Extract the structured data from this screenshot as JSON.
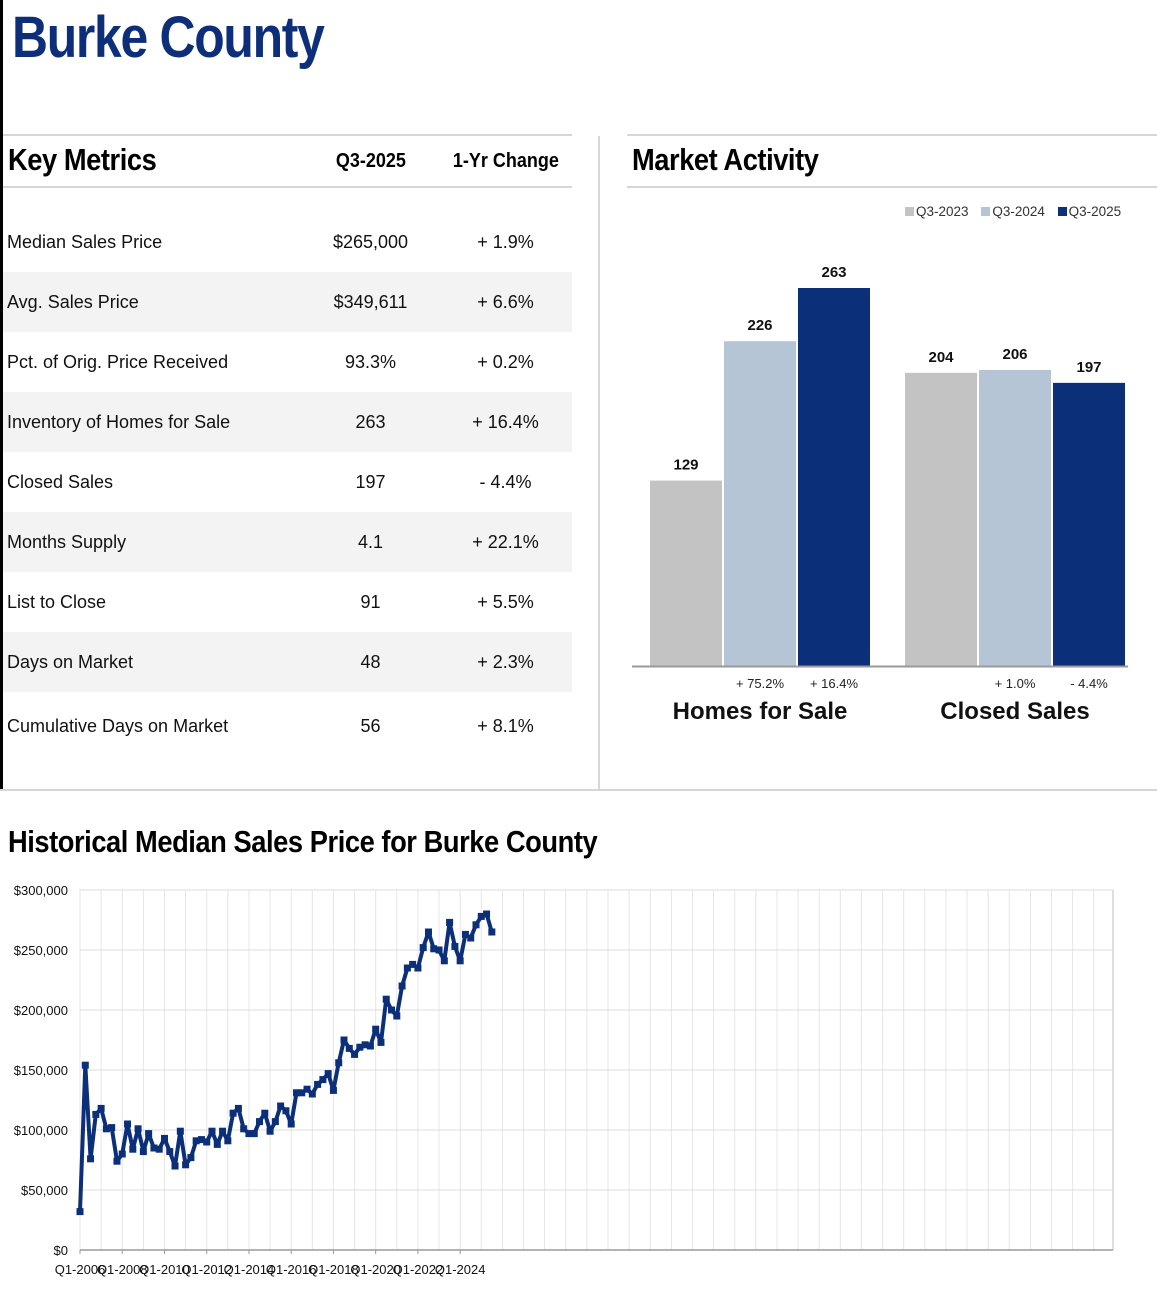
{
  "page_title": "Burke County",
  "key_metrics": {
    "title": "Key Metrics",
    "col_period": "Q3-2025",
    "col_change": "1-Yr Change",
    "rows": [
      {
        "label": "Median Sales Price",
        "value": "$265,000",
        "change": "+ 1.9%"
      },
      {
        "label": "Avg. Sales Price",
        "value": "$349,611",
        "change": "+ 6.6%"
      },
      {
        "label": "Pct. of Orig. Price Received",
        "value": "93.3%",
        "change": "+ 0.2%"
      },
      {
        "label": "Inventory of Homes for Sale",
        "value": "263",
        "change": "+ 16.4%"
      },
      {
        "label": "Closed Sales",
        "value": "197",
        "change": "- 4.4%"
      },
      {
        "label": "Months Supply",
        "value": "4.1",
        "change": "+ 22.1%"
      },
      {
        "label": "List to Close",
        "value": "91",
        "change": "+ 5.5%"
      },
      {
        "label": "Days on Market",
        "value": "48",
        "change": "+ 2.3%"
      },
      {
        "label": "Cumulative Days on Market",
        "value": "56",
        "change": "+ 8.1%"
      }
    ]
  },
  "market_activity": {
    "title": "Market Activity"
  },
  "historical": {
    "title": "Historical Median Sales Price for Burke County"
  },
  "colors": {
    "brand": "#0d2f7a",
    "q3_2023": "#c3c3c3",
    "q3_2024": "#b6c5d6",
    "q3_2025": "#0b2f78",
    "line": "#0b2f78"
  },
  "chart_data": [
    {
      "type": "bar",
      "title": "Market Activity",
      "categories": [
        "Homes for Sale",
        "Closed Sales"
      ],
      "series": [
        {
          "name": "Q3-2023",
          "values": [
            129,
            204
          ]
        },
        {
          "name": "Q3-2024",
          "values": [
            226,
            206
          ]
        },
        {
          "name": "Q3-2025",
          "values": [
            263,
            197
          ]
        }
      ],
      "change_labels": [
        [
          "+ 75.2%",
          "+ 16.4%"
        ],
        [
          "+ 1.0%",
          "- 4.4%"
        ]
      ],
      "legend": "top-right",
      "ylim": [
        0,
        270
      ]
    },
    {
      "type": "line",
      "title": "Historical Median Sales Price for Burke County",
      "xlabel": "",
      "ylabel": "",
      "start_quarter": "Q1-2006",
      "x_tick_labels": [
        "Q1-2006",
        "Q1-2008",
        "Q1-2010",
        "Q1-2012",
        "Q1-2014",
        "Q1-2016",
        "Q1-2018",
        "Q1-2020",
        "Q1-2022",
        "Q1-2024"
      ],
      "y_tick_labels": [
        "$0",
        "$50,000",
        "$100,000",
        "$150,000",
        "$200,000",
        "$250,000",
        "$300,000"
      ],
      "ylim": [
        0,
        300000
      ],
      "grid": true,
      "values": [
        32000,
        154000,
        76000,
        113000,
        118000,
        101000,
        102000,
        74000,
        80000,
        105000,
        84000,
        101000,
        82000,
        97000,
        85000,
        84000,
        93000,
        82000,
        70000,
        99000,
        71000,
        77000,
        91000,
        92000,
        90000,
        99000,
        88000,
        99000,
        91000,
        114000,
        118000,
        101000,
        97000,
        97000,
        107000,
        114000,
        99000,
        107000,
        120000,
        116000,
        105000,
        131000,
        131000,
        134000,
        130000,
        138000,
        142000,
        147000,
        133000,
        156000,
        175000,
        168000,
        163000,
        169000,
        171000,
        170000,
        184000,
        173000,
        209000,
        200000,
        195000,
        220000,
        235000,
        238000,
        235000,
        252000,
        265000,
        251000,
        250000,
        241000,
        273000,
        253000,
        241000,
        263000,
        260000,
        271000,
        278000,
        280000,
        265000
      ]
    }
  ]
}
